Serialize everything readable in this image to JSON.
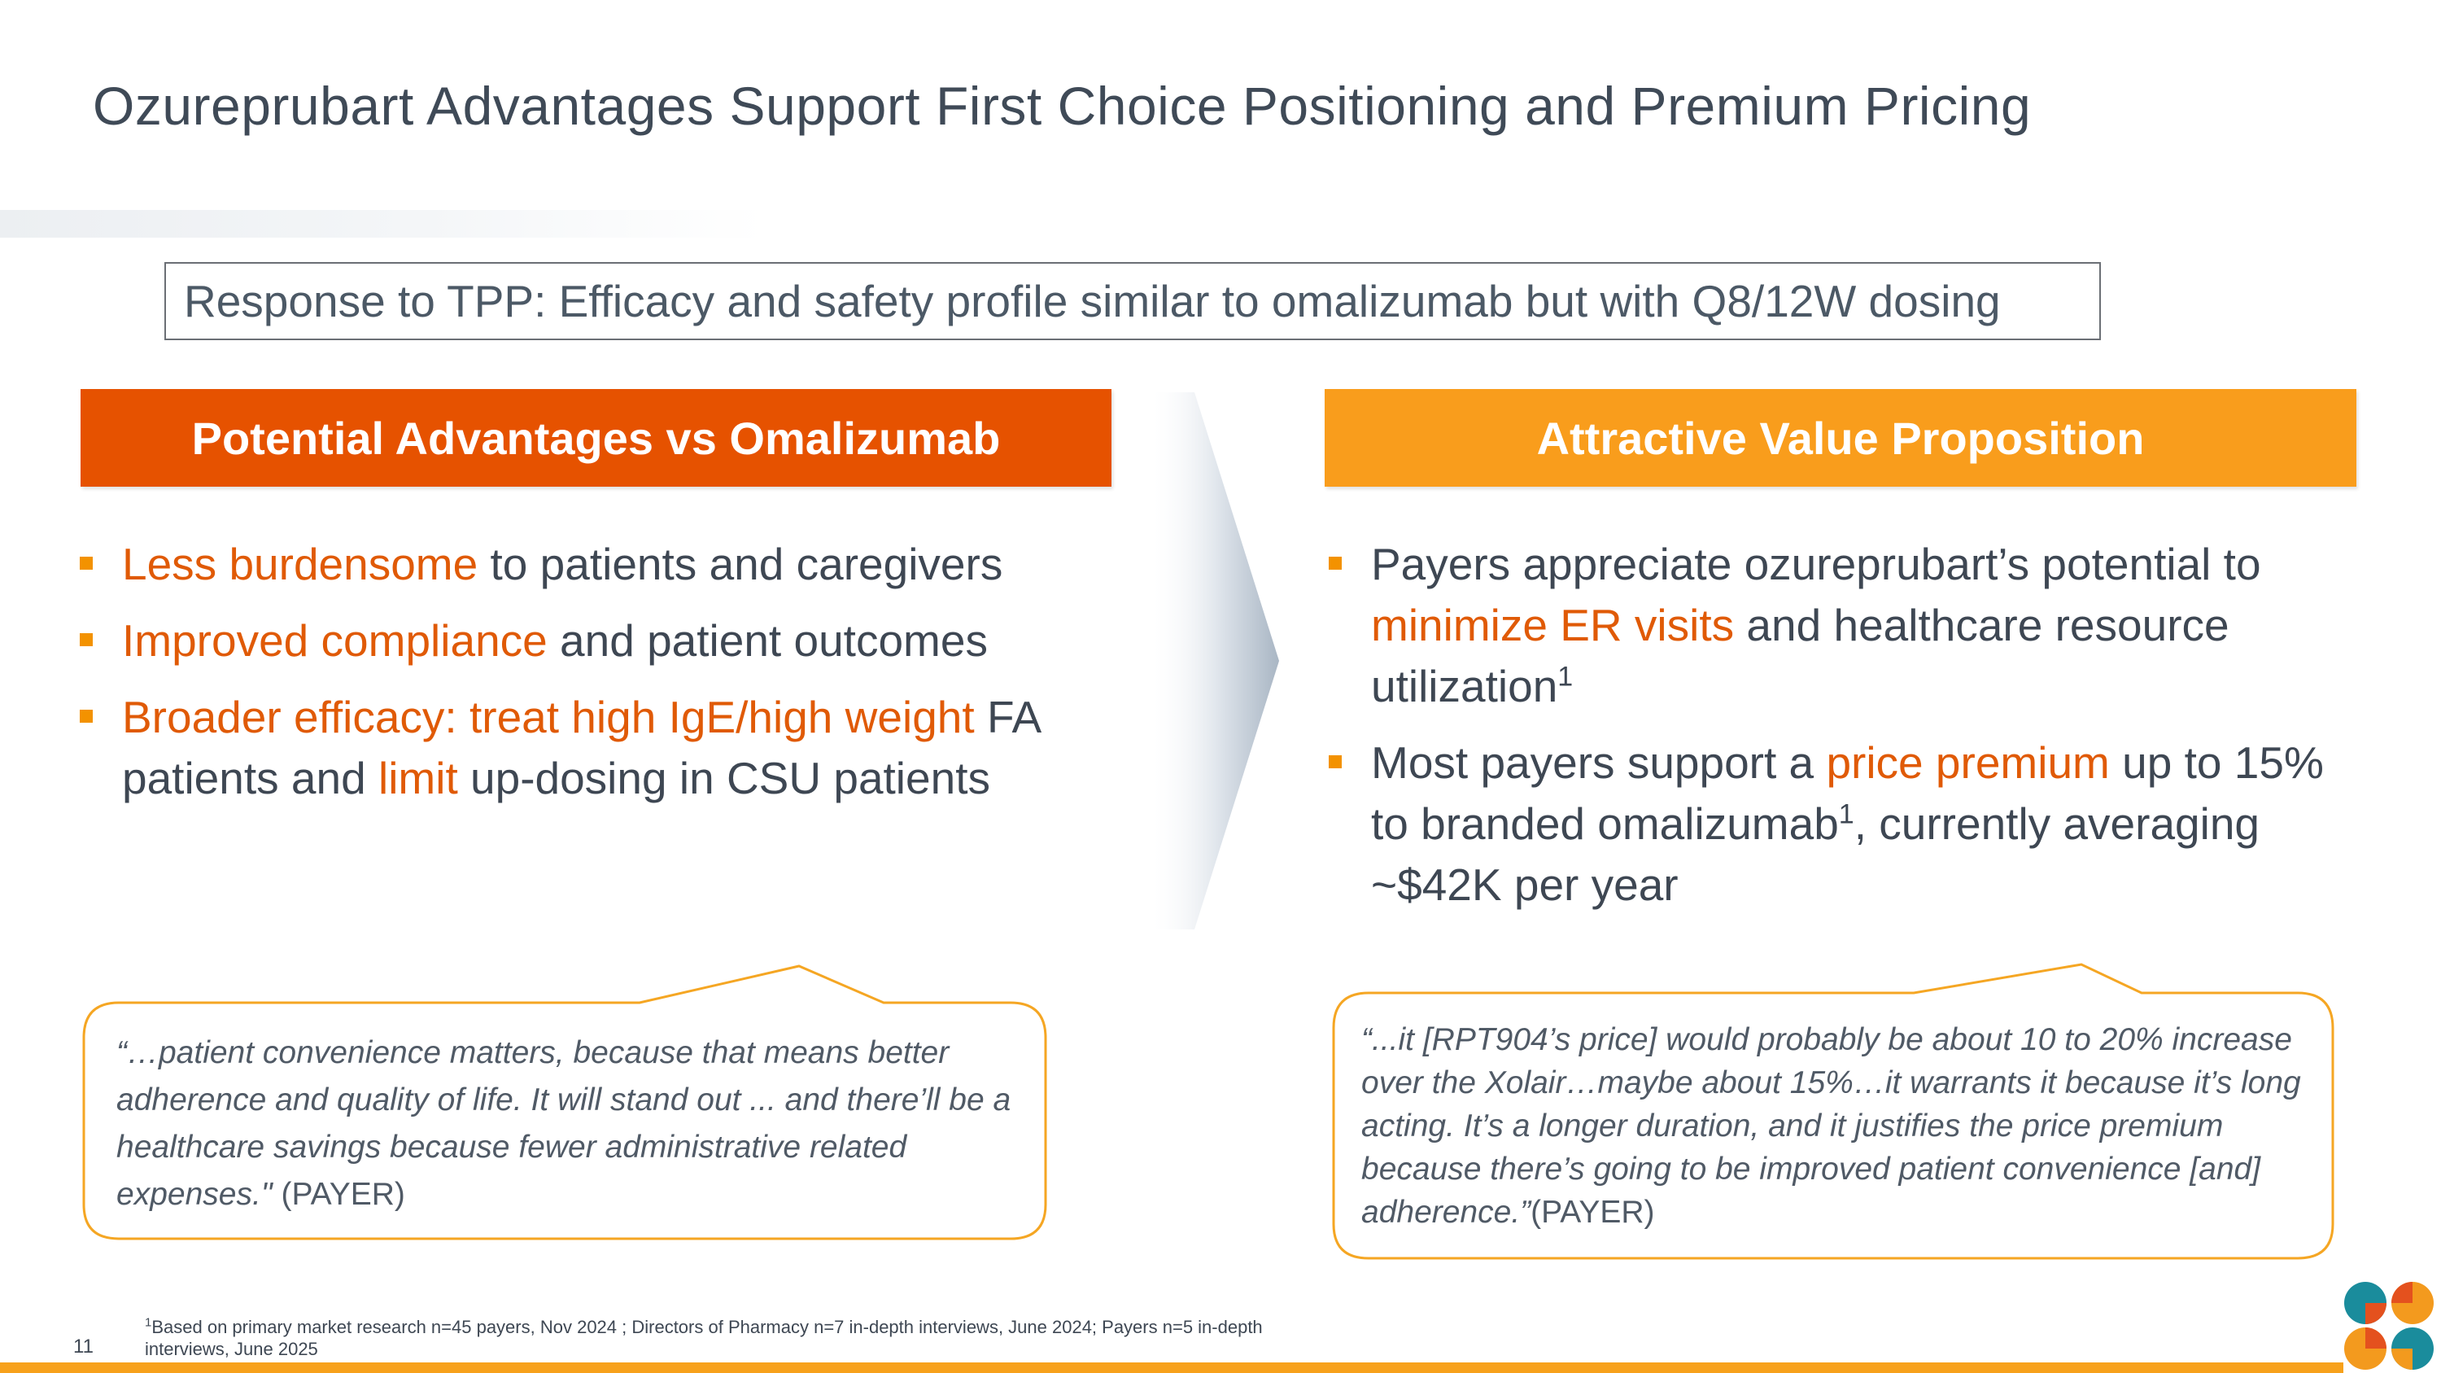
{
  "title": "Ozureprubart Advantages Support First Choice Positioning and Premium Pricing",
  "tpp_statement": "Response to TPP: Efficacy and safety profile similar to omalizumab but with Q8/12W dosing",
  "left_column": {
    "header": "Potential Advantages vs Omalizumab",
    "bullets": [
      {
        "highlight": "Less burdensome",
        "text": " to patients and caregivers"
      },
      {
        "highlight": "Improved compliance",
        "text": " and patient outcomes"
      },
      {
        "highlight": "Broader efficacy: treat high IgE/high weight",
        "text_a": " FA patients and ",
        "highlight_b": "limit",
        "text_b": " up-dosing in CSU patients"
      }
    ],
    "quote": {
      "text": "“…patient convenience matters, because that means better adherence and quality of life. It will stand out ... and there’ll be a healthcare savings because fewer administrative related expenses.\"",
      "source": " (PAYER)"
    }
  },
  "right_column": {
    "header": "Attractive Value Proposition",
    "bullets": [
      {
        "text_a": "Payers appreciate ozureprubart’s potential to ",
        "highlight": "minimize ER visits",
        "text_b": " and healthcare resource utilization",
        "sup": "1"
      },
      {
        "text_a": "Most payers support a ",
        "highlight": "price premium",
        "text_b": " up to 15% to branded omalizumab",
        "sup": "1",
        "text_c": ", currently averaging ~$42K per year"
      }
    ],
    "quote": {
      "text": "“...it [RPT904’s price] would probably be about 10 to 20% increase over the Xolair…maybe about 15%…it warrants it because it’s long acting. It’s a longer duration, and it justifies the price premium because there’s going to be improved patient convenience [and] adherence.”",
      "source": "(PAYER)"
    }
  },
  "footnote": {
    "marker": "1",
    "text": "Based on primary market research n=45 payers, Nov 2024 ; Directors of Pharmacy n=7 in-depth interviews, June 2024; Payers n=5 in-depth interviews, June 2025"
  },
  "page_number": "11",
  "colors": {
    "left_header": "#e65200",
    "right_header": "#f99d1c",
    "highlight_text": "#e05a06",
    "bullet_square": "#f39200",
    "bubble_border": "#f5a623",
    "bottom_bar": "#f7a11b",
    "logo_teal": "#1a8c9c",
    "logo_orange": "#f39a1e",
    "logo_red": "#e4511e"
  }
}
